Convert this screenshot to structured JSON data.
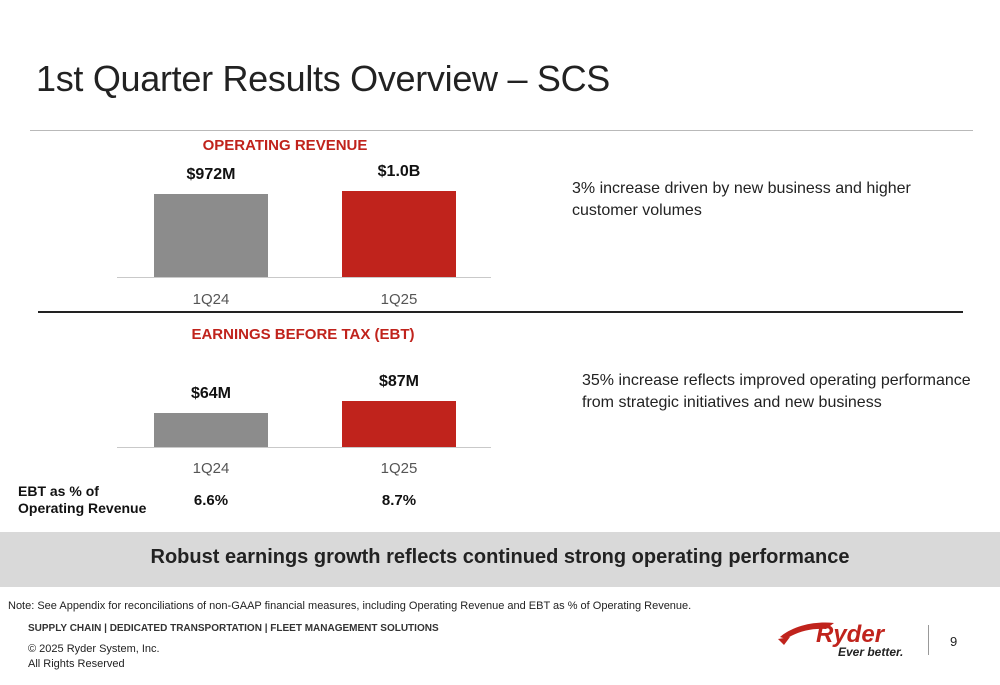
{
  "title": "1st Quarter Results Overview – SCS",
  "operating_revenue": {
    "title": "OPERATING REVENUE",
    "comment": "3% increase driven by new business and higher customer volumes"
  },
  "ebt": {
    "title": "EARNINGS BEFORE TAX (EBT)",
    "comment": "35% increase reflects improved operating performance from strategic initiatives and new business",
    "pct_label": "EBT as % of Operating Revenue",
    "pct_values": [
      "6.6%",
      "8.7%"
    ]
  },
  "chart_data": [
    {
      "type": "bar",
      "title": "OPERATING REVENUE",
      "categories": [
        "1Q24",
        "1Q25"
      ],
      "values": [
        972,
        1000
      ],
      "unit": "$M",
      "data_labels": [
        "$972M",
        "$1.0B"
      ],
      "colors": [
        "#8c8c8c",
        "#c0231c"
      ],
      "grid": false
    },
    {
      "type": "bar",
      "title": "EARNINGS BEFORE TAX (EBT)",
      "categories": [
        "1Q24",
        "1Q25"
      ],
      "values": [
        64,
        87
      ],
      "unit": "$M",
      "data_labels": [
        "$64M",
        "$87M"
      ],
      "colors": [
        "#8c8c8c",
        "#c0231c"
      ],
      "grid": false
    }
  ],
  "banner": "Robust earnings growth reflects continued strong operating performance",
  "footer": {
    "note": "Note: See Appendix for reconciliations of non-GAAP financial measures, including Operating Revenue and EBT as % of Operating Revenue.",
    "tagline": "SUPPLY CHAIN | DEDICATED TRANSPORTATION | FLEET MANAGEMENT SOLUTIONS",
    "copyright": "© 2025 Ryder System, Inc.",
    "rights": "All Rights Reserved",
    "logo_name": "Ryder",
    "logo_slogan": "Ever better.",
    "page_number": "9"
  },
  "colors": {
    "accent_red": "#c0231c",
    "bar_gray": "#8c8c8c",
    "banner_gray": "#d9d9d9"
  }
}
